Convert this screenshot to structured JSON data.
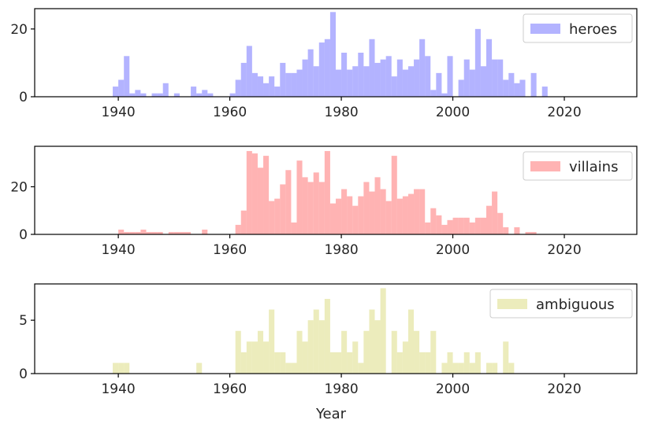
{
  "chart_data": [
    {
      "type": "bar",
      "series_name": "heroes",
      "color": "#8080ff",
      "xlim": [
        1925,
        2033
      ],
      "ylim": [
        0,
        26
      ],
      "yticks": [
        0,
        20
      ],
      "xticks": [
        1940,
        1960,
        1980,
        2000,
        2020
      ],
      "legend_position": "top-right",
      "x": [
        1939,
        1940,
        1941,
        1942,
        1943,
        1944,
        1945,
        1946,
        1947,
        1948,
        1949,
        1950,
        1951,
        1952,
        1953,
        1954,
        1955,
        1956,
        1957,
        1958,
        1959,
        1960,
        1961,
        1962,
        1963,
        1964,
        1965,
        1966,
        1967,
        1968,
        1969,
        1970,
        1971,
        1972,
        1973,
        1974,
        1975,
        1976,
        1977,
        1978,
        1979,
        1980,
        1981,
        1982,
        1983,
        1984,
        1985,
        1986,
        1987,
        1988,
        1989,
        1990,
        1991,
        1992,
        1993,
        1994,
        1995,
        1996,
        1997,
        1998,
        1999,
        2000,
        2001,
        2002,
        2003,
        2004,
        2005,
        2006,
        2007,
        2008,
        2009,
        2010,
        2011,
        2012,
        2013,
        2014,
        2015,
        2016,
        2017
      ],
      "values": [
        3,
        5,
        12,
        1,
        2,
        1,
        0,
        1,
        1,
        4,
        0,
        1,
        0,
        0,
        3,
        1,
        2,
        1,
        0,
        0,
        0,
        1,
        5,
        10,
        15,
        7,
        6,
        4,
        6,
        3,
        10,
        7,
        7,
        8,
        11,
        14,
        9,
        16,
        17,
        25,
        8,
        13,
        8,
        9,
        13,
        9,
        17,
        10,
        11,
        12,
        6,
        11,
        8,
        9,
        11,
        17,
        12,
        2,
        7,
        1,
        12,
        0,
        5,
        11,
        8,
        20,
        9,
        17,
        11,
        11,
        5,
        7,
        4,
        5,
        0,
        7,
        0,
        3,
        0
      ]
    },
    {
      "type": "bar",
      "series_name": "villains",
      "color": "#ff8080",
      "xlim": [
        1925,
        2033
      ],
      "ylim": [
        0,
        37
      ],
      "yticks": [
        0,
        20
      ],
      "xticks": [
        1940,
        1960,
        1980,
        2000,
        2020
      ],
      "legend_position": "top-right",
      "x": [
        1940,
        1941,
        1942,
        1943,
        1944,
        1945,
        1946,
        1947,
        1948,
        1949,
        1950,
        1951,
        1952,
        1953,
        1954,
        1955,
        1956,
        1957,
        1958,
        1959,
        1960,
        1961,
        1962,
        1963,
        1964,
        1965,
        1966,
        1967,
        1968,
        1969,
        1970,
        1971,
        1972,
        1973,
        1974,
        1975,
        1976,
        1977,
        1978,
        1979,
        1980,
        1981,
        1982,
        1983,
        1984,
        1985,
        1986,
        1987,
        1988,
        1989,
        1990,
        1991,
        1992,
        1993,
        1994,
        1995,
        1996,
        1997,
        1998,
        1999,
        2000,
        2001,
        2002,
        2003,
        2004,
        2005,
        2006,
        2007,
        2008,
        2009,
        2010,
        2011,
        2012,
        2013,
        2014
      ],
      "values": [
        2,
        1,
        1,
        1,
        2,
        1,
        1,
        1,
        0,
        1,
        1,
        1,
        1,
        0,
        0,
        2,
        0,
        0,
        0,
        0,
        0,
        4,
        10,
        35,
        34,
        28,
        33,
        14,
        15,
        21,
        27,
        5,
        31,
        24,
        22,
        26,
        22,
        35,
        13,
        15,
        19,
        16,
        12,
        16,
        22,
        18,
        24,
        19,
        14,
        33,
        15,
        16,
        17,
        19,
        19,
        5,
        11,
        8,
        4,
        6,
        7,
        7,
        7,
        5,
        7,
        7,
        12,
        18,
        9,
        3,
        0,
        3,
        0,
        1,
        1
      ]
    },
    {
      "type": "bar",
      "series_name": "ambiguous",
      "color": "#e0e090",
      "xlim": [
        1925,
        2033
      ],
      "ylim": [
        0,
        8.4
      ],
      "yticks": [
        0,
        5
      ],
      "xticks": [
        1940,
        1960,
        1980,
        2000,
        2020
      ],
      "legend_position": "top-right",
      "xlabel": "Year",
      "x": [
        1939,
        1940,
        1941,
        1954,
        1961,
        1962,
        1963,
        1964,
        1965,
        1966,
        1967,
        1968,
        1969,
        1970,
        1971,
        1972,
        1973,
        1974,
        1975,
        1976,
        1977,
        1978,
        1979,
        1980,
        1981,
        1982,
        1983,
        1984,
        1985,
        1986,
        1987,
        1988,
        1989,
        1990,
        1991,
        1992,
        1993,
        1994,
        1995,
        1996,
        1997,
        1998,
        1999,
        2000,
        2001,
        2002,
        2003,
        2004,
        2005,
        2006,
        2007,
        2008,
        2009,
        2010
      ],
      "values": [
        1,
        1,
        1,
        1,
        4,
        2,
        3,
        3,
        4,
        3,
        6,
        2,
        2,
        1,
        1,
        4,
        3,
        5,
        6,
        5,
        7,
        2,
        2,
        4,
        2,
        3,
        1,
        4,
        6,
        5,
        8,
        0,
        4,
        2,
        3,
        6,
        4,
        2,
        2,
        4,
        0,
        1,
        2,
        1,
        1,
        2,
        1,
        2,
        0,
        1,
        1,
        0,
        3,
        1
      ]
    }
  ]
}
